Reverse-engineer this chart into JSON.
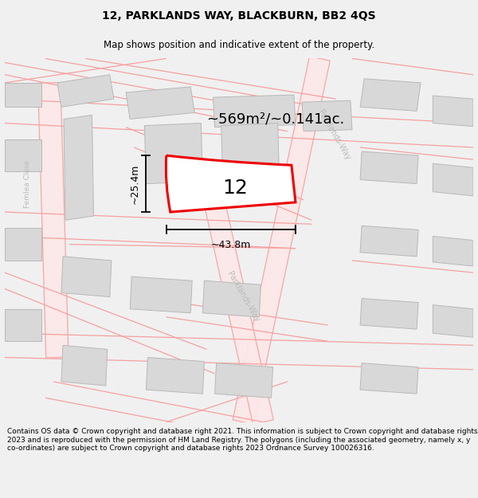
{
  "title": "12, PARKLANDS WAY, BLACKBURN, BB2 4QS",
  "subtitle": "Map shows position and indicative extent of the property.",
  "footer": "Contains OS data © Crown copyright and database right 2021. This information is subject to Crown copyright and database rights 2023 and is reproduced with the permission of HM Land Registry. The polygons (including the associated geometry, namely x, y co-ordinates) are subject to Crown copyright and database rights 2023 Ordnance Survey 100026316.",
  "bg_color": "#f0f0f0",
  "map_bg": "#ffffff",
  "road_line_color": "#f5a0a0",
  "road_fill_color": "#fde8e8",
  "building_color": "#d8d8d8",
  "building_edge": "#b8b8b8",
  "plot_color": "#ee0000",
  "plot_label": "12",
  "area_label": "~569m²/~0.141ac.",
  "width_label": "~43.8m",
  "height_label": "~25.4m",
  "road_label_top": "Parklands-Way",
  "road_label_bot": "Parklands-Way",
  "left_road_label": "Femlea Close",
  "title_fontsize": 10,
  "subtitle_fontsize": 8.5,
  "footer_fontsize": 6.5,
  "plot_num_fontsize": 18,
  "area_fontsize": 13,
  "dim_fontsize": 9
}
